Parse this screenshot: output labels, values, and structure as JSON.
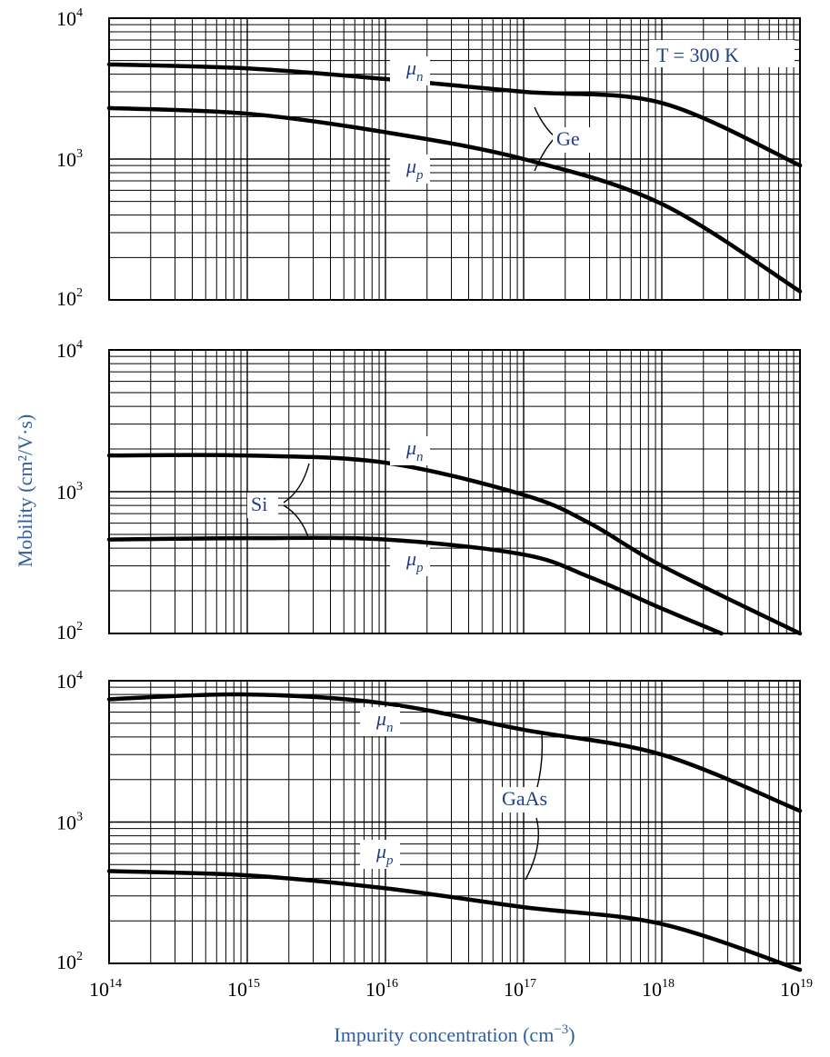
{
  "figure": {
    "ylabel": "Mobility (cm²/V·s)",
    "xlabel_text": "Impurity concentration (cm",
    "xlabel_exp": "−3",
    "xlabel_close": ")",
    "temperature_label": "T = 300 K",
    "x_tick_labels": [
      {
        "base": "10",
        "exp": "14"
      },
      {
        "base": "10",
        "exp": "15"
      },
      {
        "base": "10",
        "exp": "16"
      },
      {
        "base": "10",
        "exp": "17"
      },
      {
        "base": "10",
        "exp": "18"
      },
      {
        "base": "10",
        "exp": "19"
      }
    ],
    "y_tick_labels": [
      {
        "base": "10",
        "exp": "2"
      },
      {
        "base": "10",
        "exp": "3"
      },
      {
        "base": "10",
        "exp": "4"
      }
    ]
  },
  "chart_data": [
    {
      "type": "line",
      "material": "Ge",
      "xscale": "log",
      "yscale": "log",
      "xlim": [
        100000000000000.0,
        1e+19
      ],
      "ylim": [
        100,
        10000
      ],
      "grid": true,
      "series": [
        {
          "name": "μn",
          "label_sub": "n",
          "x": [
            100000000000000.0,
            1000000000000000.0,
            1e+16,
            1e+17,
            1e+18,
            1e+19
          ],
          "values": [
            4700,
            4400,
            3700,
            3000,
            2500,
            900
          ]
        },
        {
          "name": "μp",
          "label_sub": "p",
          "x": [
            100000000000000.0,
            1000000000000000.0,
            1e+16,
            1e+17,
            1e+18,
            1e+19
          ],
          "values": [
            2300,
            2100,
            1550,
            1000,
            480,
            115
          ]
        }
      ]
    },
    {
      "type": "line",
      "material": "Si",
      "xscale": "log",
      "yscale": "log",
      "xlim": [
        100000000000000.0,
        1e+19
      ],
      "ylim": [
        100,
        10000
      ],
      "grid": true,
      "series": [
        {
          "name": "μn",
          "label_sub": "n",
          "x": [
            100000000000000.0,
            1000000000000000.0,
            1e+16,
            1e+17,
            3e+17,
            1e+18,
            1e+19
          ],
          "values": [
            1800,
            1800,
            1600,
            950,
            600,
            300,
            100
          ]
        },
        {
          "name": "μp",
          "label_sub": "p",
          "x": [
            100000000000000.0,
            1000000000000000.0,
            1e+16,
            1e+17,
            3e+17,
            1e+18,
            2.7e+18
          ],
          "values": [
            460,
            470,
            460,
            360,
            250,
            150,
            100
          ]
        }
      ]
    },
    {
      "type": "line",
      "material": "GaAs",
      "xscale": "log",
      "yscale": "log",
      "xlim": [
        100000000000000.0,
        1e+19
      ],
      "ylim": [
        100,
        10000
      ],
      "grid": true,
      "series": [
        {
          "name": "μn",
          "label_sub": "n",
          "x": [
            100000000000000.0,
            1000000000000000.0,
            1e+16,
            1e+17,
            1e+18,
            1e+19
          ],
          "values": [
            7400,
            8000,
            6900,
            4500,
            3000,
            1200
          ]
        },
        {
          "name": "μp",
          "label_sub": "p",
          "x": [
            100000000000000.0,
            1000000000000000.0,
            1e+16,
            1e+17,
            1e+18,
            1e+19
          ],
          "values": [
            450,
            420,
            340,
            250,
            190,
            90
          ]
        }
      ]
    }
  ]
}
